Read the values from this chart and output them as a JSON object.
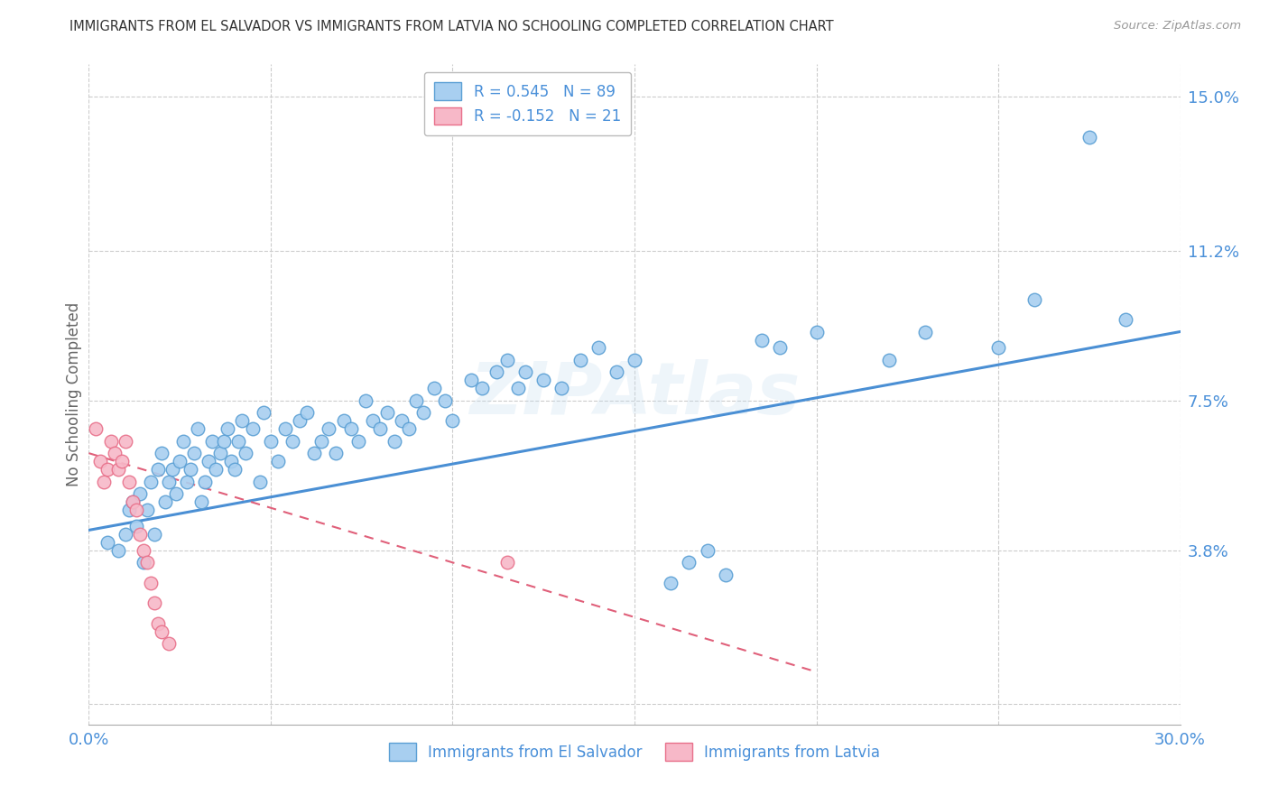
{
  "title": "IMMIGRANTS FROM EL SALVADOR VS IMMIGRANTS FROM LATVIA NO SCHOOLING COMPLETED CORRELATION CHART",
  "source": "Source: ZipAtlas.com",
  "ylabel": "No Schooling Completed",
  "xlim": [
    0.0,
    0.3
  ],
  "ylim": [
    -0.005,
    0.158
  ],
  "xtick_vals": [
    0.0,
    0.05,
    0.1,
    0.15,
    0.2,
    0.25,
    0.3
  ],
  "ytick_vals": [
    0.0,
    0.038,
    0.075,
    0.112,
    0.15
  ],
  "el_salvador_R": 0.545,
  "el_salvador_N": 89,
  "latvia_R": -0.152,
  "latvia_N": 21,
  "el_salvador_color": "#a8cff0",
  "latvia_color": "#f7b8c8",
  "el_salvador_edge_color": "#5a9fd4",
  "latvia_edge_color": "#e8708a",
  "el_salvador_line_color": "#4a8fd4",
  "latvia_line_color": "#e0607a",
  "watermark": "ZIPAtlas",
  "background_color": "#ffffff",
  "grid_color": "#cccccc",
  "axis_color": "#4a90d9",
  "title_color": "#333333",
  "el_salvador_x": [
    0.005,
    0.008,
    0.01,
    0.011,
    0.012,
    0.013,
    0.014,
    0.015,
    0.016,
    0.017,
    0.018,
    0.019,
    0.02,
    0.021,
    0.022,
    0.023,
    0.024,
    0.025,
    0.026,
    0.027,
    0.028,
    0.029,
    0.03,
    0.031,
    0.032,
    0.033,
    0.034,
    0.035,
    0.036,
    0.037,
    0.038,
    0.039,
    0.04,
    0.041,
    0.042,
    0.043,
    0.045,
    0.047,
    0.048,
    0.05,
    0.052,
    0.054,
    0.056,
    0.058,
    0.06,
    0.062,
    0.064,
    0.066,
    0.068,
    0.07,
    0.072,
    0.074,
    0.076,
    0.078,
    0.08,
    0.082,
    0.084,
    0.086,
    0.088,
    0.09,
    0.092,
    0.095,
    0.098,
    0.1,
    0.105,
    0.108,
    0.112,
    0.115,
    0.118,
    0.12,
    0.125,
    0.13,
    0.135,
    0.14,
    0.145,
    0.15,
    0.16,
    0.165,
    0.17,
    0.175,
    0.185,
    0.19,
    0.2,
    0.22,
    0.23,
    0.25,
    0.26,
    0.275,
    0.285
  ],
  "el_salvador_y": [
    0.04,
    0.038,
    0.042,
    0.048,
    0.05,
    0.044,
    0.052,
    0.035,
    0.048,
    0.055,
    0.042,
    0.058,
    0.062,
    0.05,
    0.055,
    0.058,
    0.052,
    0.06,
    0.065,
    0.055,
    0.058,
    0.062,
    0.068,
    0.05,
    0.055,
    0.06,
    0.065,
    0.058,
    0.062,
    0.065,
    0.068,
    0.06,
    0.058,
    0.065,
    0.07,
    0.062,
    0.068,
    0.055,
    0.072,
    0.065,
    0.06,
    0.068,
    0.065,
    0.07,
    0.072,
    0.062,
    0.065,
    0.068,
    0.062,
    0.07,
    0.068,
    0.065,
    0.075,
    0.07,
    0.068,
    0.072,
    0.065,
    0.07,
    0.068,
    0.075,
    0.072,
    0.078,
    0.075,
    0.07,
    0.08,
    0.078,
    0.082,
    0.085,
    0.078,
    0.082,
    0.08,
    0.078,
    0.085,
    0.088,
    0.082,
    0.085,
    0.03,
    0.035,
    0.038,
    0.032,
    0.09,
    0.088,
    0.092,
    0.085,
    0.092,
    0.088,
    0.1,
    0.14,
    0.095
  ],
  "latvia_x": [
    0.002,
    0.003,
    0.004,
    0.005,
    0.006,
    0.007,
    0.008,
    0.009,
    0.01,
    0.011,
    0.012,
    0.013,
    0.014,
    0.015,
    0.016,
    0.017,
    0.018,
    0.019,
    0.02,
    0.022,
    0.115
  ],
  "latvia_y": [
    0.068,
    0.06,
    0.055,
    0.058,
    0.065,
    0.062,
    0.058,
    0.06,
    0.065,
    0.055,
    0.05,
    0.048,
    0.042,
    0.038,
    0.035,
    0.03,
    0.025,
    0.02,
    0.018,
    0.015,
    0.035
  ],
  "es_line_x0": 0.0,
  "es_line_y0": 0.043,
  "es_line_x1": 0.3,
  "es_line_y1": 0.092,
  "lv_line_x0": 0.0,
  "lv_line_y0": 0.062,
  "lv_line_x1": 0.2,
  "lv_line_y1": 0.008
}
